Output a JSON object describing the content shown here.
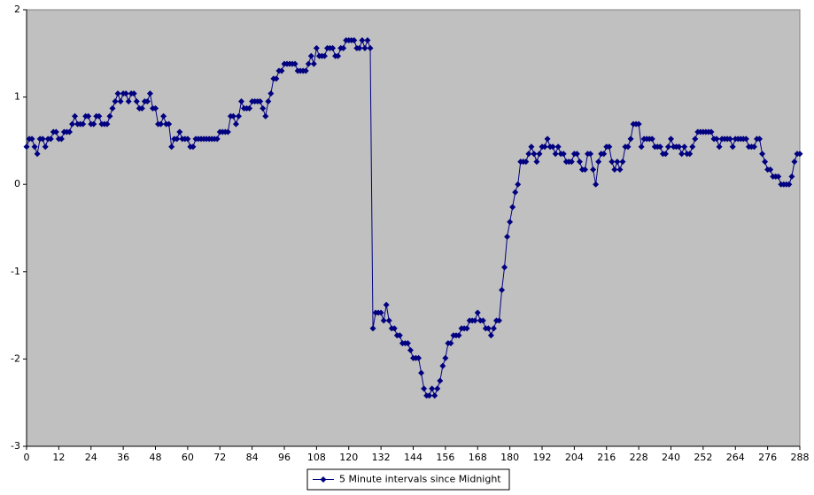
{
  "chart_data": {
    "type": "line",
    "x": [
      0,
      1,
      2,
      3,
      4,
      5,
      6,
      7,
      8,
      9,
      10,
      11,
      12,
      13,
      14,
      15,
      16,
      17,
      18,
      19,
      20,
      21,
      22,
      23,
      24,
      25,
      26,
      27,
      28,
      29,
      30,
      31,
      32,
      33,
      34,
      35,
      36,
      37,
      38,
      39,
      40,
      41,
      42,
      43,
      44,
      45,
      46,
      47,
      48,
      49,
      50,
      51,
      52,
      53,
      54,
      55,
      56,
      57,
      58,
      59,
      60,
      61,
      62,
      63,
      64,
      65,
      66,
      67,
      68,
      69,
      70,
      71,
      72,
      73,
      74,
      75,
      76,
      77,
      78,
      79,
      80,
      81,
      82,
      83,
      84,
      85,
      86,
      87,
      88,
      89,
      90,
      91,
      92,
      93,
      94,
      95,
      96,
      97,
      98,
      99,
      100,
      101,
      102,
      103,
      104,
      105,
      106,
      107,
      108,
      109,
      110,
      111,
      112,
      113,
      114,
      115,
      116,
      117,
      118,
      119,
      120,
      121,
      122,
      123,
      124,
      125,
      126,
      127,
      128,
      129,
      130,
      131,
      132,
      133,
      134,
      135,
      136,
      137,
      138,
      139,
      140,
      141,
      142,
      143,
      144,
      145,
      146,
      147,
      148,
      149,
      150,
      151,
      152,
      153,
      154,
      155,
      156,
      157,
      158,
      159,
      160,
      161,
      162,
      163,
      164,
      165,
      166,
      167,
      168,
      169,
      170,
      171,
      172,
      173,
      174,
      175,
      176,
      177,
      178,
      179,
      180,
      181,
      182,
      183,
      184,
      185,
      186,
      187,
      188,
      189,
      190,
      191,
      192,
      193,
      194,
      195,
      196,
      197,
      198,
      199,
      200,
      201,
      202,
      203,
      204,
      205,
      206,
      207,
      208,
      209,
      210,
      211,
      212,
      213,
      214,
      215,
      216,
      217,
      218,
      219,
      220,
      221,
      222,
      223,
      224,
      225,
      226,
      227,
      228,
      229,
      230,
      231,
      232,
      233,
      234,
      235,
      236,
      237,
      238,
      239,
      240,
      241,
      242,
      243,
      244,
      245,
      246,
      247,
      248,
      249,
      250,
      251,
      252,
      253,
      254,
      255,
      256,
      257,
      258,
      259,
      260,
      261,
      262,
      263,
      264,
      265,
      266,
      267,
      268,
      269,
      270,
      271,
      272,
      273,
      274,
      275,
      276,
      277,
      278,
      279,
      280,
      281,
      282,
      283,
      284,
      285,
      286,
      287,
      288
    ],
    "series": [
      {
        "name": "5 Minute intervals since Midnight",
        "color": "#000080",
        "values": [
          0.43,
          0.52,
          0.52,
          0.43,
          0.35,
          0.52,
          0.52,
          0.43,
          0.52,
          0.52,
          0.6,
          0.6,
          0.52,
          0.52,
          0.6,
          0.6,
          0.6,
          0.69,
          0.78,
          0.69,
          0.69,
          0.69,
          0.78,
          0.78,
          0.69,
          0.69,
          0.78,
          0.78,
          0.69,
          0.69,
          0.69,
          0.78,
          0.87,
          0.95,
          1.04,
          0.95,
          1.04,
          1.04,
          0.95,
          1.04,
          1.04,
          0.95,
          0.87,
          0.87,
          0.95,
          0.95,
          1.04,
          0.87,
          0.87,
          0.69,
          0.69,
          0.78,
          0.69,
          0.69,
          0.43,
          0.52,
          0.52,
          0.6,
          0.52,
          0.52,
          0.52,
          0.43,
          0.43,
          0.52,
          0.52,
          0.52,
          0.52,
          0.52,
          0.52,
          0.52,
          0.52,
          0.52,
          0.6,
          0.6,
          0.6,
          0.6,
          0.78,
          0.78,
          0.69,
          0.78,
          0.95,
          0.87,
          0.87,
          0.87,
          0.95,
          0.95,
          0.95,
          0.95,
          0.87,
          0.78,
          0.95,
          1.04,
          1.21,
          1.21,
          1.3,
          1.3,
          1.38,
          1.38,
          1.38,
          1.38,
          1.38,
          1.3,
          1.3,
          1.3,
          1.3,
          1.38,
          1.47,
          1.38,
          1.56,
          1.47,
          1.47,
          1.47,
          1.56,
          1.56,
          1.56,
          1.47,
          1.47,
          1.56,
          1.56,
          1.65,
          1.65,
          1.65,
          1.65,
          1.56,
          1.56,
          1.65,
          1.56,
          1.65,
          1.56,
          -1.65,
          -1.47,
          -1.47,
          -1.47,
          -1.56,
          -1.38,
          -1.56,
          -1.65,
          -1.65,
          -1.73,
          -1.73,
          -1.82,
          -1.82,
          -1.82,
          -1.9,
          -1.99,
          -1.99,
          -1.99,
          -2.16,
          -2.34,
          -2.42,
          -2.42,
          -2.34,
          -2.42,
          -2.34,
          -2.25,
          -2.08,
          -1.99,
          -1.82,
          -1.82,
          -1.73,
          -1.73,
          -1.73,
          -1.65,
          -1.65,
          -1.65,
          -1.56,
          -1.56,
          -1.56,
          -1.47,
          -1.56,
          -1.56,
          -1.65,
          -1.65,
          -1.73,
          -1.65,
          -1.56,
          -1.56,
          -1.21,
          -0.95,
          -0.6,
          -0.43,
          -0.26,
          -0.09,
          0,
          0.26,
          0.26,
          0.26,
          0.35,
          0.43,
          0.35,
          0.26,
          0.35,
          0.43,
          0.43,
          0.52,
          0.43,
          0.43,
          0.35,
          0.43,
          0.35,
          0.35,
          0.26,
          0.26,
          0.26,
          0.35,
          0.35,
          0.26,
          0.17,
          0.17,
          0.35,
          0.35,
          0.17,
          0,
          0.26,
          0.35,
          0.35,
          0.43,
          0.43,
          0.26,
          0.17,
          0.26,
          0.17,
          0.26,
          0.43,
          0.43,
          0.52,
          0.69,
          0.69,
          0.69,
          0.43,
          0.52,
          0.52,
          0.52,
          0.52,
          0.43,
          0.43,
          0.43,
          0.35,
          0.35,
          0.43,
          0.52,
          0.43,
          0.43,
          0.43,
          0.35,
          0.43,
          0.35,
          0.35,
          0.43,
          0.52,
          0.6,
          0.6,
          0.6,
          0.6,
          0.6,
          0.6,
          0.52,
          0.52,
          0.43,
          0.52,
          0.52,
          0.52,
          0.52,
          0.43,
          0.52,
          0.52,
          0.52,
          0.52,
          0.52,
          0.43,
          0.43,
          0.43,
          0.52,
          0.52,
          0.35,
          0.26,
          0.17,
          0.17,
          0.09,
          0.09,
          0.09,
          0,
          0,
          0,
          0,
          0.09,
          0.26,
          0.35,
          0.35
        ]
      }
    ],
    "xlim": [
      0,
      288
    ],
    "xticks": [
      0,
      12,
      24,
      36,
      48,
      60,
      72,
      84,
      96,
      108,
      120,
      132,
      144,
      156,
      168,
      180,
      192,
      204,
      216,
      228,
      240,
      252,
      264,
      276,
      288
    ],
    "ylim": [
      -3,
      2
    ],
    "yticks": [
      -3,
      -2,
      -1,
      0,
      1,
      2
    ],
    "grid": false,
    "legend": "bottom"
  }
}
